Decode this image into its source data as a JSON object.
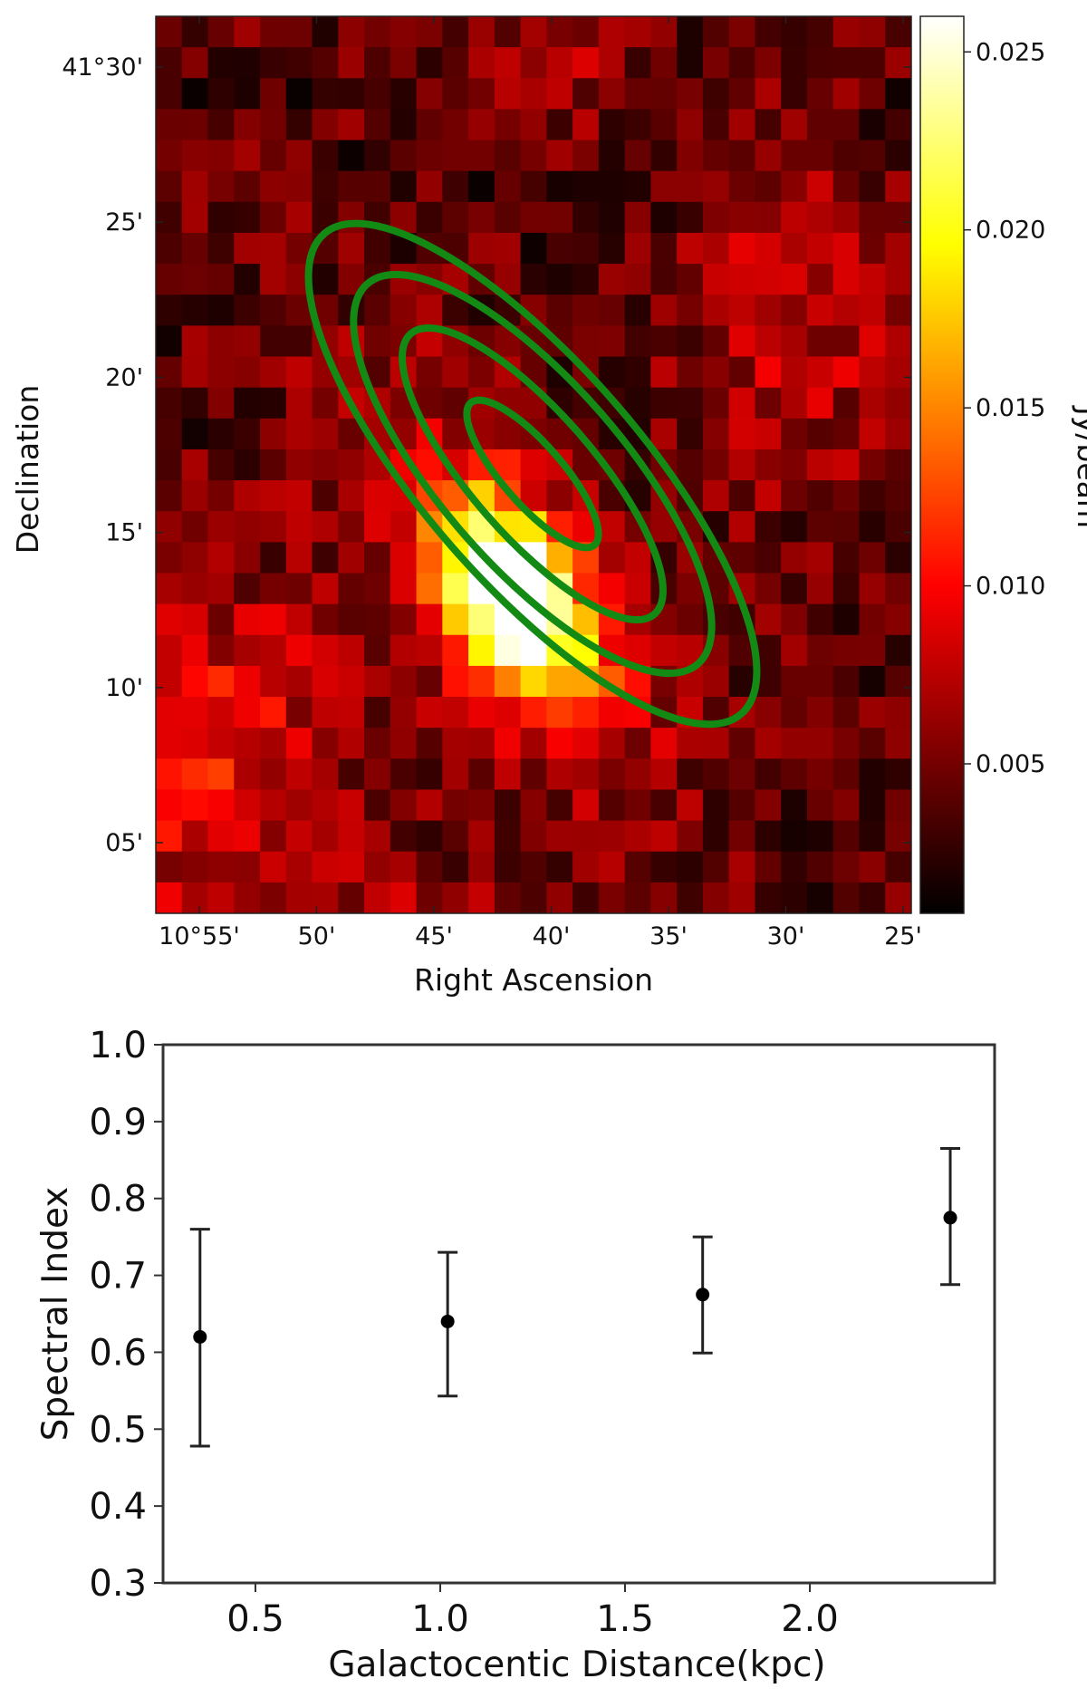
{
  "chart_data": [
    {
      "type": "heatmap",
      "title": "",
      "xlabel": "Right Ascension",
      "ylabel": "Declination",
      "x_ticks": [
        "10°55'",
        "50'",
        "45'",
        "40'",
        "35'",
        "30'",
        "25'"
      ],
      "y_ticks": [
        "41°30'",
        "25'",
        "20'",
        "15'",
        "10'",
        "05'"
      ],
      "colorbar": {
        "label": "Jy/beam",
        "ticks": [
          "0.025",
          "0.020",
          "0.015",
          "0.010",
          "0.005"
        ],
        "tick_values": [
          0.025,
          0.02,
          0.015,
          0.01,
          0.005
        ],
        "range": [
          0.0008,
          0.026
        ],
        "colormap": "hot"
      },
      "grid_size": [
        29,
        29
      ],
      "peak": {
        "ra": "10°42'",
        "dec": "41°16'",
        "value": 0.025
      },
      "contours": {
        "count": 4,
        "color": "#138a13",
        "shape": "concentric ellipses along galaxy major axis"
      }
    },
    {
      "type": "scatter",
      "title": "",
      "xlabel": "Galactocentic Distance(kpc)",
      "ylabel": "Spectral Index",
      "xlim": [
        0.25,
        2.5
      ],
      "ylim": [
        0.3,
        1.0
      ],
      "x_ticks": [
        "0.5",
        "1.0",
        "1.5",
        "2.0"
      ],
      "y_ticks": [
        "1.0",
        "0.9",
        "0.8",
        "0.7",
        "0.6",
        "0.5",
        "0.4",
        "0.3"
      ],
      "x": [
        0.35,
        1.02,
        1.71,
        2.38
      ],
      "y": [
        0.62,
        0.64,
        0.675,
        0.775
      ],
      "yerr_low": [
        0.478,
        0.543,
        0.599,
        0.688
      ],
      "yerr_high": [
        0.76,
        0.73,
        0.75,
        0.865
      ],
      "marker_color": "#000000"
    }
  ]
}
